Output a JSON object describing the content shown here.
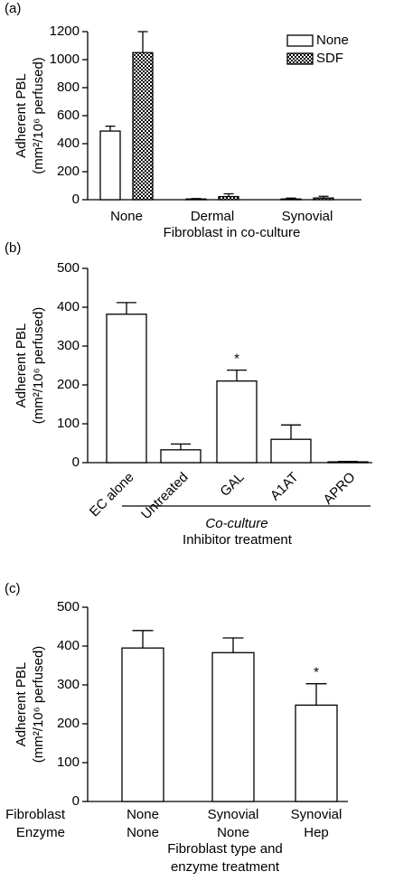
{
  "chart_data": [
    {
      "type": "bar",
      "panel_label": "(a)",
      "ylabel": [
        "Adherent PBL",
        "(mm²/10⁶ perfused)"
      ],
      "xlabel": [
        "Fibroblast in co-culture"
      ],
      "categories": [
        "None",
        "Dermal",
        "Synovial"
      ],
      "series": [
        {
          "name": "None",
          "color": "#ffffff",
          "values": [
            490,
            5,
            5
          ],
          "errors": [
            35,
            3,
            6
          ]
        },
        {
          "name": "SDF",
          "color": "#ffffff",
          "pattern": "dots",
          "values": [
            1050,
            22,
            12
          ],
          "errors": [
            150,
            20,
            12
          ]
        }
      ],
      "ylim": [
        0,
        1200
      ],
      "yticks": [
        0,
        200,
        400,
        600,
        800,
        1000,
        1200
      ],
      "legend": "top-right"
    },
    {
      "type": "bar",
      "panel_label": "(b)",
      "ylabel": [
        "Adherent PBL",
        "(mm²/10⁶ perfused)"
      ],
      "group_label": "Co-culture",
      "xlabel": [
        "Inhibitor treatment"
      ],
      "categories": [
        "EC alone",
        "Untreated",
        "GAL",
        "A1AT",
        "APRO"
      ],
      "series": [
        {
          "color": "#ffffff",
          "values": [
            382,
            33,
            210,
            60,
            2
          ],
          "errors": [
            30,
            15,
            28,
            37,
            1
          ]
        }
      ],
      "ylim": [
        0,
        500
      ],
      "yticks": [
        0,
        100,
        200,
        300,
        400,
        500
      ],
      "rotate_labels": true,
      "annotations": [
        {
          "text": "*",
          "category": "GAL"
        }
      ]
    },
    {
      "type": "bar",
      "panel_label": "(c)",
      "ylabel": [
        "Adherent PBL",
        "(mm²/10⁶ perfused)"
      ],
      "xlabel": [
        "Fibroblast type and",
        "enzyme treatment"
      ],
      "category_rows": [
        {
          "name": "Fibroblast",
          "labels": [
            "None",
            "Synovial",
            "Synovial"
          ]
        },
        {
          "name": "Enzyme",
          "labels": [
            "None",
            "None",
            "Hep"
          ]
        }
      ],
      "series": [
        {
          "color": "#ffffff",
          "values": [
            395,
            383,
            248
          ],
          "errors": [
            45,
            38,
            55
          ]
        }
      ],
      "ylim": [
        0,
        500
      ],
      "yticks": [
        0,
        100,
        200,
        300,
        400,
        500
      ],
      "annotations": [
        {
          "text": "*",
          "category": 2
        }
      ]
    }
  ]
}
